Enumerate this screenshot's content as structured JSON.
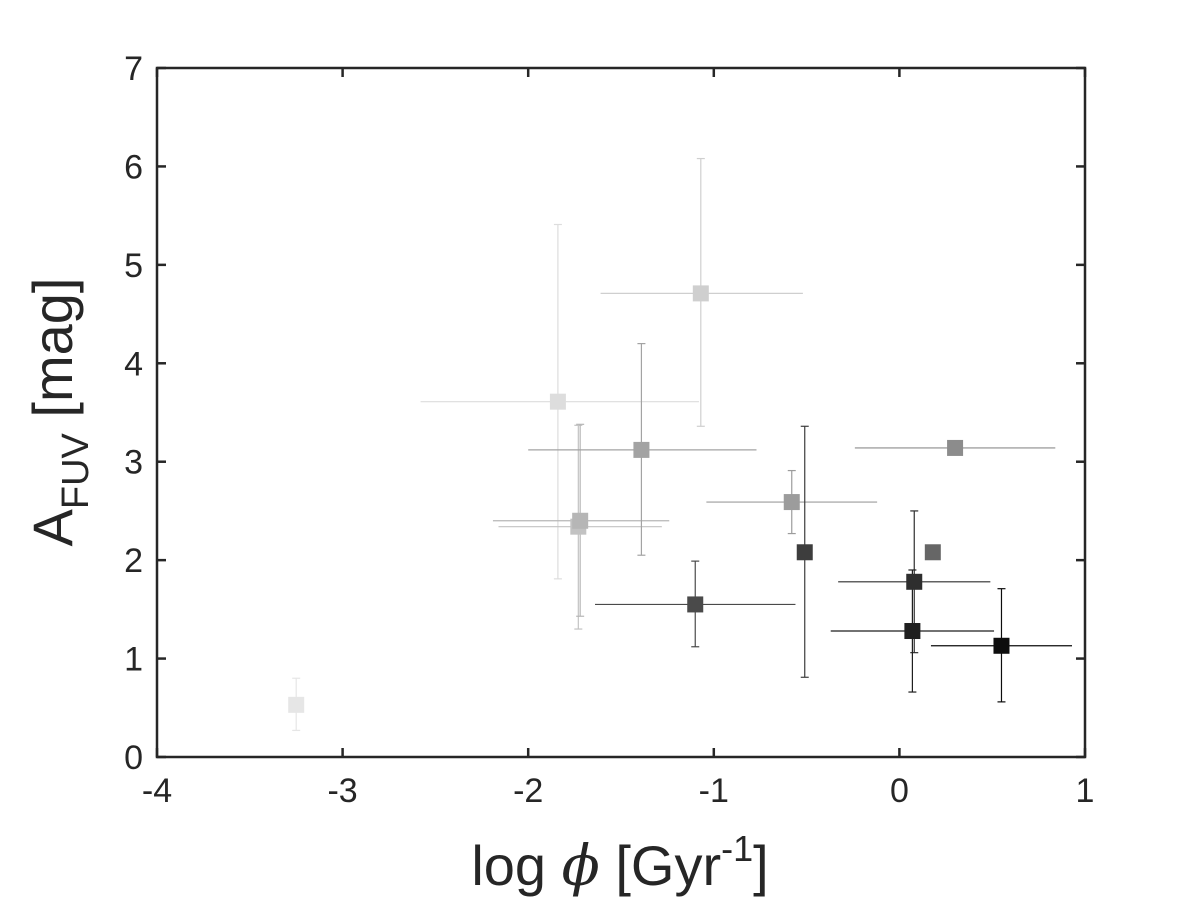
{
  "chart_data": {
    "type": "scatter",
    "title": "",
    "xlabel": {
      "prefix": "log ",
      "symbol": "ϕ",
      "open": " [Gyr",
      "sup": "-1",
      "close": "]"
    },
    "ylabel": {
      "main": "A",
      "sub": "FUV",
      "rest": " [mag]"
    },
    "xlim": [
      -4,
      1
    ],
    "ylim": [
      0,
      7
    ],
    "xticks": [
      -4,
      -3,
      -2,
      -1,
      0,
      1
    ],
    "xtick_labels": [
      "-4",
      "-3",
      "-2",
      "-1",
      "0",
      "1"
    ],
    "yticks": [
      0,
      1,
      2,
      3,
      4,
      5,
      6,
      7
    ],
    "ytick_labels": [
      "0",
      "1",
      "2",
      "3",
      "4",
      "5",
      "6",
      "7"
    ],
    "grid": false,
    "box": true,
    "marker": "square",
    "color_scale": "grayscale (light to dark)",
    "points": [
      {
        "x": -3.25,
        "y": 0.53,
        "yerr": [
          0.26,
          0.27
        ],
        "xerr": null,
        "color": "#e6e6e6"
      },
      {
        "x": -1.84,
        "y": 3.61,
        "yerr": [
          1.8,
          1.8
        ],
        "xerr": [
          0.74,
          0.76
        ],
        "color": "#dddddd"
      },
      {
        "x": -1.73,
        "y": 2.34,
        "yerr": [
          1.04,
          1.03
        ],
        "xerr": [
          0.43,
          0.45
        ],
        "color": "#c2c2c2"
      },
      {
        "x": -1.72,
        "y": 2.4,
        "yerr": [
          0.97,
          0.98
        ],
        "xerr": [
          0.47,
          0.48
        ],
        "color": "#b6b6b6"
      },
      {
        "x": -1.07,
        "y": 4.71,
        "yerr": [
          1.35,
          1.37
        ],
        "xerr": [
          0.54,
          0.55
        ],
        "color": "#cfcfcf"
      },
      {
        "x": -1.39,
        "y": 3.12,
        "yerr": [
          1.07,
          1.08
        ],
        "xerr": [
          0.61,
          0.62
        ],
        "color": "#a3a3a3"
      },
      {
        "x": -0.58,
        "y": 2.59,
        "yerr": [
          0.32,
          0.32
        ],
        "xerr": [
          0.46,
          0.46
        ],
        "color": "#9c9c9c"
      },
      {
        "x": 0.3,
        "y": 3.14,
        "yerr": null,
        "xerr": [
          0.54,
          0.54
        ],
        "color": "#8c8c8c"
      },
      {
        "x": -1.1,
        "y": 1.55,
        "yerr": [
          0.43,
          0.44
        ],
        "xerr": [
          0.54,
          0.54
        ],
        "color": "#4a4a4a"
      },
      {
        "x": -0.51,
        "y": 2.08,
        "yerr": [
          1.27,
          1.28
        ],
        "xerr": null,
        "color": "#3d3d3d"
      },
      {
        "x": 0.18,
        "y": 2.08,
        "yerr": null,
        "xerr": null,
        "color": "#666666"
      },
      {
        "x": 0.08,
        "y": 1.78,
        "yerr": [
          0.72,
          0.72
        ],
        "xerr": [
          0.41,
          0.41
        ],
        "color": "#2e2e2e"
      },
      {
        "x": 0.07,
        "y": 1.28,
        "yerr": [
          0.62,
          0.62
        ],
        "xerr": [
          0.44,
          0.44
        ],
        "color": "#1f1f1f"
      },
      {
        "x": 0.55,
        "y": 1.13,
        "yerr": [
          0.57,
          0.58
        ],
        "xerr": [
          0.38,
          0.38
        ],
        "color": "#0d0d0d"
      }
    ]
  }
}
